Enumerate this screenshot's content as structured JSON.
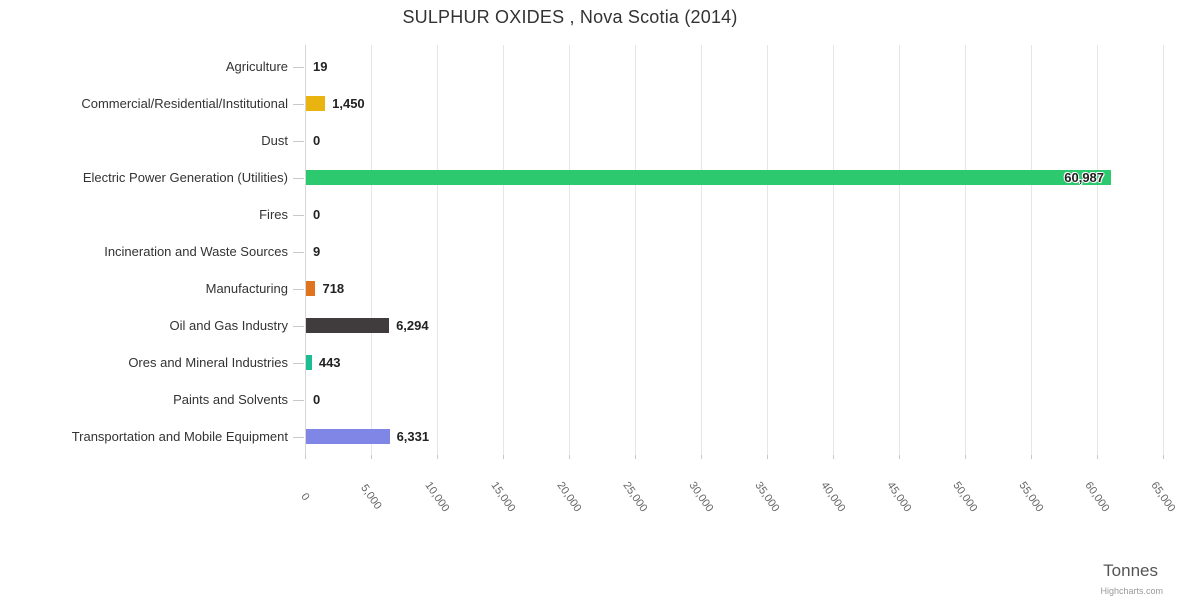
{
  "chart_data": {
    "type": "bar",
    "title": "SULPHUR OXIDES , Nova Scotia (2014)",
    "xlabel": "Tonnes",
    "ylabel": "",
    "categories": [
      "Agriculture",
      "Commercial/Residential/Institutional",
      "Dust",
      "Electric Power Generation (Utilities)",
      "Fires",
      "Incineration and Waste Sources",
      "Manufacturing",
      "Oil and Gas Industry",
      "Ores and Mineral Industries",
      "Paints and Solvents",
      "Transportation and Mobile Equipment"
    ],
    "values": [
      19,
      1450,
      0,
      60987,
      0,
      9,
      718,
      6294,
      443,
      0,
      6331
    ],
    "value_labels": [
      "19",
      "1,450",
      "0",
      "60,987",
      "0",
      "9",
      "718",
      "6,294",
      "443",
      "0",
      "6,331"
    ],
    "bar_colors": [
      "#999999",
      "#E9B40F",
      null,
      "#2DC96F",
      null,
      "#999999",
      "#E0731E",
      "#403B3D",
      "#1CBD93",
      null,
      "#8086E6"
    ],
    "xlim": [
      0,
      65000
    ],
    "x_ticks": [
      0,
      5000,
      10000,
      15000,
      20000,
      25000,
      30000,
      35000,
      40000,
      45000,
      50000,
      55000,
      60000,
      65000
    ],
    "x_tick_labels": [
      "0",
      "5,000",
      "10,000",
      "15,000",
      "20,000",
      "25,000",
      "30,000",
      "35,000",
      "40,000",
      "45,000",
      "50,000",
      "55,000",
      "60,000",
      "65,000"
    ],
    "grid": true,
    "legend": false,
    "credit": "Highcharts.com"
  },
  "colors": {
    "grid_line": "#e6e6e6",
    "axis_line": "#d6d6d6",
    "tick_mark": "#c9c9c9",
    "title_text": "#333333",
    "category_text": "#333333",
    "value_text": "#222222",
    "tick_text": "#666666",
    "axis_title_text": "#555555",
    "credit_text": "#999999"
  }
}
